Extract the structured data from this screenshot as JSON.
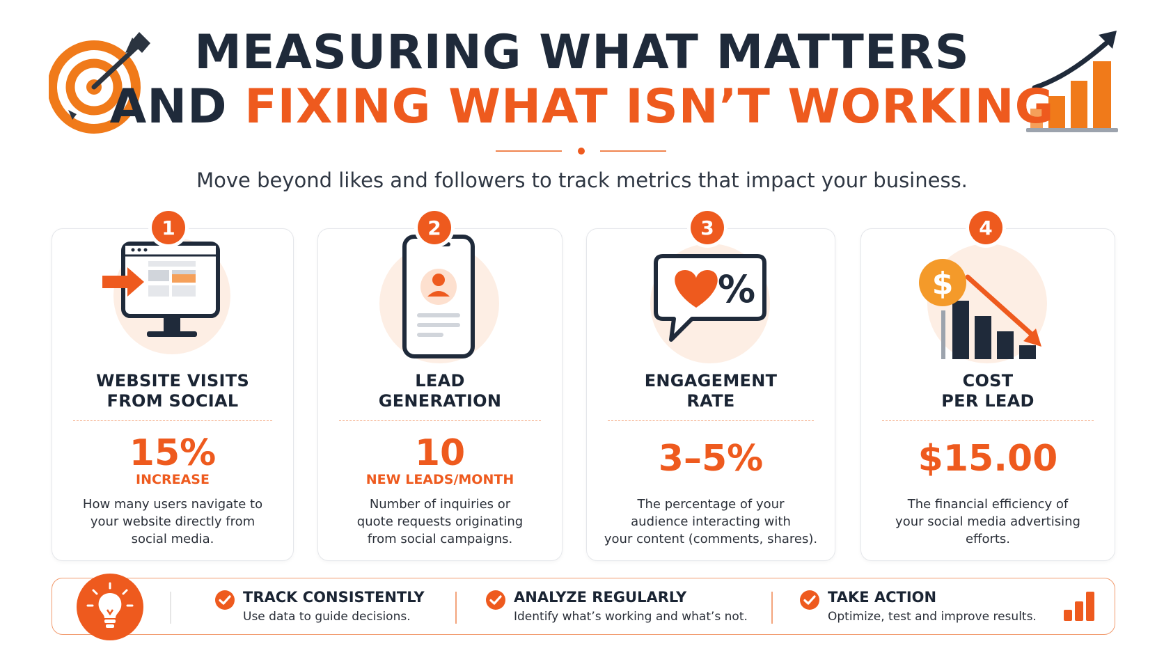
{
  "header": {
    "title_line1": "MEASURING WHAT MATTERS",
    "title_line2_prefix": "AND ",
    "title_line2_accent": "FIXING WHAT ISN’T WORKING",
    "subtitle": "Move beyond likes and followers to track metrics that impact your business.",
    "left_icon": "target-arrow-icon",
    "right_icon": "growth-chart-icon"
  },
  "colors": {
    "accent": "#ee5a1e",
    "dark": "#1f2a3a"
  },
  "cards": [
    {
      "number": "1",
      "icon": "monitor-traffic-icon",
      "title_line1": "WEBSITE VISITS",
      "title_line2": "FROM SOCIAL",
      "metric": "15%",
      "unit": "INCREASE",
      "desc_line1": "How many users navigate to",
      "desc_line2": "your website directly from",
      "desc_line3": "social media."
    },
    {
      "number": "2",
      "icon": "phone-profile-icon",
      "title_line1": "LEAD",
      "title_line2": "GENERATION",
      "metric": "10",
      "unit": "NEW LEADS/MONTH",
      "desc_line1": "Number of inquiries or",
      "desc_line2": "quote requests originating",
      "desc_line3": "from social campaigns."
    },
    {
      "number": "3",
      "icon": "heart-percent-bubble-icon",
      "title_line1": "ENGAGEMENT",
      "title_line2": "RATE",
      "metric": "3–5%",
      "desc_line1": "The percentage of your",
      "desc_line2": "audience interacting with",
      "desc_line3": "your content (comments, shares)."
    },
    {
      "number": "4",
      "icon": "dollar-decline-chart-icon",
      "title_line1": "COST",
      "title_line2": "PER LEAD",
      "metric": "$15.00",
      "desc_line1": "The financial efficiency of",
      "desc_line2": "your social media advertising",
      "desc_line3": "efforts."
    }
  ],
  "tips": {
    "icon": "lightbulb-icon",
    "items": [
      {
        "title": "TRACK CONSISTENTLY",
        "desc": "Use data to guide decisions."
      },
      {
        "title": "ANALYZE REGULARLY",
        "desc": "Identify what’s working and what’s not."
      },
      {
        "title": "TAKE ACTION",
        "desc": "Optimize, test and improve results."
      }
    ],
    "end_icon": "mini-bar-chart-icon"
  }
}
